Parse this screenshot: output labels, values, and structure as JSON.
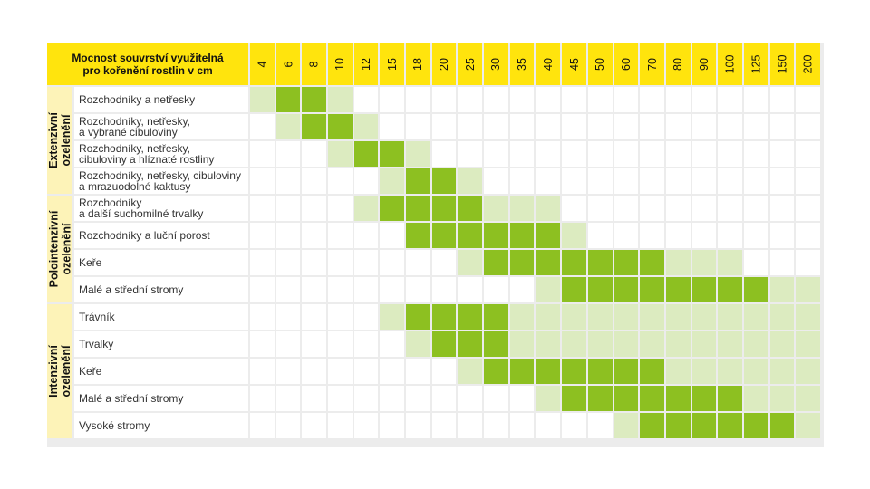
{
  "chart_data": {
    "type": "table",
    "header_title": "Mocnost souvrství využitelná\npro kořenění rostlin v cm",
    "columns": [
      "4",
      "6",
      "8",
      "10",
      "12",
      "15",
      "18",
      "20",
      "25",
      "30",
      "35",
      "40",
      "45",
      "50",
      "60",
      "70",
      "80",
      "90",
      "100",
      "125",
      "150",
      "200"
    ],
    "legend_levels": {
      "0": "empty",
      "1": "suitable-light",
      "2": "optimal-dark"
    },
    "colors": {
      "header": "#ffe40d",
      "group_bg": "#fdf3b8",
      "dark": "#8dc021",
      "light": "#dcebc0",
      "empty": "#ffffff",
      "grid": "#ececec"
    },
    "groups": [
      {
        "label": "Extenzivní\nozelenění",
        "rows": [
          0,
          1,
          2,
          3
        ]
      },
      {
        "label": "Polointenzivní\nozelenění",
        "rows": [
          4,
          5,
          6,
          7
        ]
      },
      {
        "label": "Intenzivní\nozelenění",
        "rows": [
          8,
          9,
          10,
          11,
          12
        ]
      }
    ],
    "rows": [
      {
        "label": "Rozchodníky a netřesky",
        "cells": [
          1,
          2,
          2,
          1,
          0,
          0,
          0,
          0,
          0,
          0,
          0,
          0,
          0,
          0,
          0,
          0,
          0,
          0,
          0,
          0,
          0,
          0
        ]
      },
      {
        "label": "Rozchodníky, netřesky,\na vybrané cibuloviny",
        "cells": [
          0,
          1,
          2,
          2,
          1,
          0,
          0,
          0,
          0,
          0,
          0,
          0,
          0,
          0,
          0,
          0,
          0,
          0,
          0,
          0,
          0,
          0
        ]
      },
      {
        "label": "Rozchodníky, netřesky,\ncibuloviny a hlíznaté rostliny",
        "cells": [
          0,
          0,
          0,
          1,
          2,
          2,
          1,
          0,
          0,
          0,
          0,
          0,
          0,
          0,
          0,
          0,
          0,
          0,
          0,
          0,
          0,
          0
        ]
      },
      {
        "label": "Rozchodníky, netřesky, cibuloviny\na mrazuodolné kaktusy",
        "cells": [
          0,
          0,
          0,
          0,
          0,
          1,
          2,
          2,
          1,
          0,
          0,
          0,
          0,
          0,
          0,
          0,
          0,
          0,
          0,
          0,
          0,
          0
        ]
      },
      {
        "label": "Rozchodníky\na další suchomilné trvalky",
        "cells": [
          0,
          0,
          0,
          0,
          1,
          2,
          2,
          2,
          2,
          1,
          1,
          1,
          0,
          0,
          0,
          0,
          0,
          0,
          0,
          0,
          0,
          0
        ]
      },
      {
        "label": "Rozchodníky a luční porost",
        "cells": [
          0,
          0,
          0,
          0,
          0,
          0,
          2,
          2,
          2,
          2,
          2,
          2,
          1,
          0,
          0,
          0,
          0,
          0,
          0,
          0,
          0,
          0
        ]
      },
      {
        "label": "Keře",
        "cells": [
          0,
          0,
          0,
          0,
          0,
          0,
          0,
          0,
          1,
          2,
          2,
          2,
          2,
          2,
          2,
          2,
          1,
          1,
          1,
          0,
          0,
          0
        ]
      },
      {
        "label": "Malé a střední stromy",
        "cells": [
          0,
          0,
          0,
          0,
          0,
          0,
          0,
          0,
          0,
          0,
          0,
          1,
          2,
          2,
          2,
          2,
          2,
          2,
          2,
          2,
          1,
          1
        ]
      },
      {
        "label": "Trávník",
        "cells": [
          0,
          0,
          0,
          0,
          0,
          1,
          2,
          2,
          2,
          2,
          1,
          1,
          1,
          1,
          1,
          1,
          1,
          1,
          1,
          1,
          1,
          1
        ]
      },
      {
        "label": "Trvalky",
        "cells": [
          0,
          0,
          0,
          0,
          0,
          0,
          1,
          2,
          2,
          2,
          1,
          1,
          1,
          1,
          1,
          1,
          1,
          1,
          1,
          1,
          1,
          1
        ]
      },
      {
        "label": "Keře",
        "cells": [
          0,
          0,
          0,
          0,
          0,
          0,
          0,
          0,
          1,
          2,
          2,
          2,
          2,
          2,
          2,
          2,
          1,
          1,
          1,
          1,
          1,
          1
        ]
      },
      {
        "label": "Malé a střední stromy",
        "cells": [
          0,
          0,
          0,
          0,
          0,
          0,
          0,
          0,
          0,
          0,
          0,
          1,
          2,
          2,
          2,
          2,
          2,
          2,
          2,
          1,
          1,
          1
        ]
      },
      {
        "label": "Vysoké stromy",
        "cells": [
          0,
          0,
          0,
          0,
          0,
          0,
          0,
          0,
          0,
          0,
          0,
          0,
          0,
          0,
          1,
          2,
          2,
          2,
          2,
          2,
          2,
          1
        ]
      }
    ]
  }
}
